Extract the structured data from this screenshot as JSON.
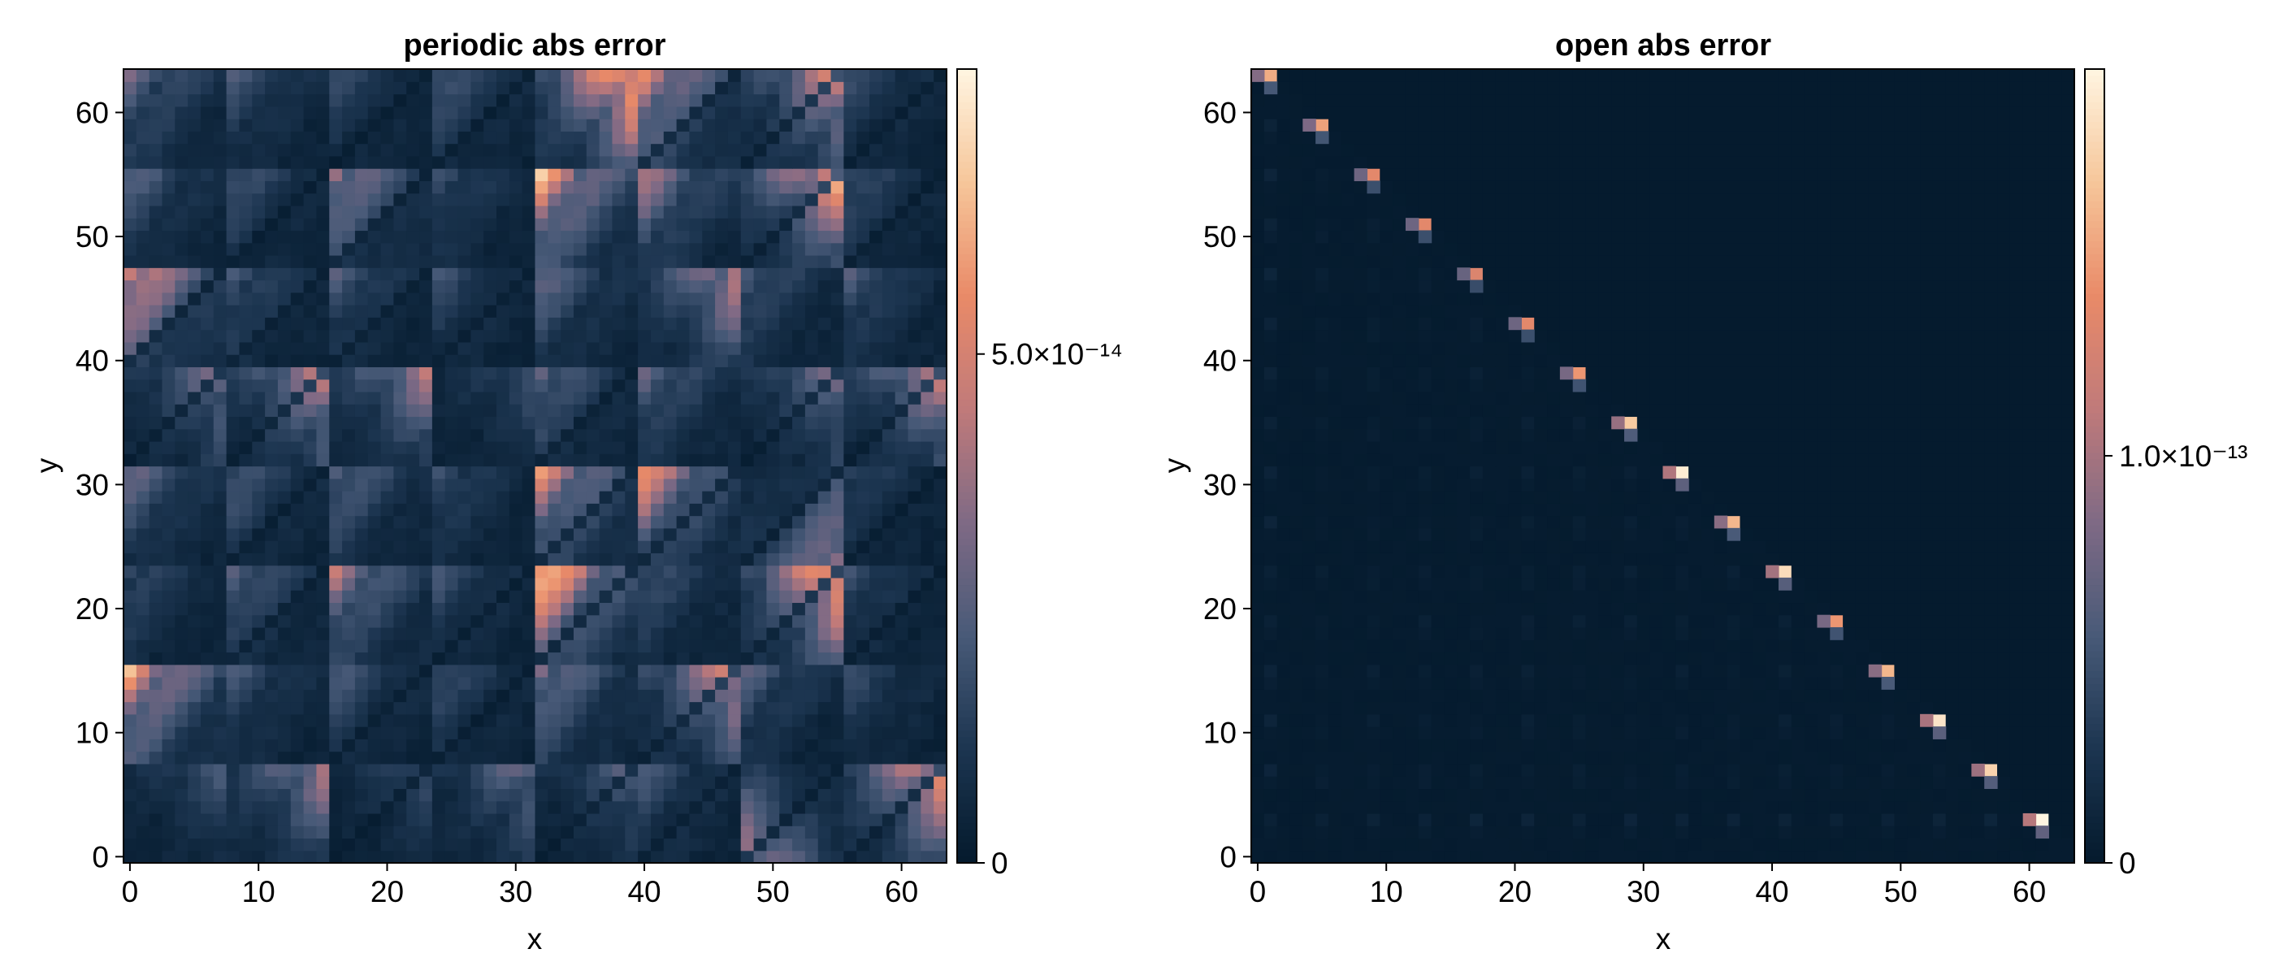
{
  "colors": {
    "colormap": [
      "#041a2d",
      "#1c3550",
      "#485a78",
      "#7f6a85",
      "#c07a7a",
      "#e98a68",
      "#f6c69a",
      "#fff5e1"
    ],
    "axis": "#000000"
  },
  "chart_data": [
    {
      "type": "heatmap",
      "title": "periodic abs error",
      "xlabel": "x",
      "ylabel": "y",
      "xlim": [
        -0.5,
        63.5
      ],
      "ylim": [
        -0.5,
        63.5
      ],
      "xticks": [
        0,
        10,
        20,
        30,
        40,
        50,
        60
      ],
      "yticks": [
        0,
        10,
        20,
        30,
        40,
        50,
        60
      ],
      "colorbar": {
        "range": [
          0,
          7.8e-14
        ],
        "ticks": [
          {
            "value": 0,
            "label": "0"
          },
          {
            "value": 5e-14,
            "label": "5.0×10⁻¹⁴"
          }
        ]
      },
      "grid": {
        "nx": 64,
        "ny": 64,
        "block_size": 8
      },
      "blocks": {
        "description_rows": "8x8 grid of block peak values (×1e-14), row index = y block from bottom, col index = x block from left",
        "rows": [
          [
            2.2,
            4.4,
            2.0,
            3.2,
            2.6,
            2.2,
            4.4,
            6.4
          ],
          [
            6.4,
            2.2,
            2.4,
            2.0,
            3.8,
            5.8,
            2.6,
            1.8
          ],
          [
            2.0,
            2.8,
            4.4,
            2.0,
            7.6,
            2.2,
            7.6,
            1.8
          ],
          [
            3.0,
            2.4,
            3.0,
            2.0,
            5.6,
            5.8,
            4.4,
            1.6
          ],
          [
            3.6,
            5.0,
            4.4,
            2.0,
            3.0,
            3.0,
            3.6,
            5.0
          ],
          [
            6.2,
            2.4,
            2.4,
            2.0,
            3.0,
            5.0,
            2.4,
            2.4
          ],
          [
            2.6,
            2.2,
            4.4,
            2.0,
            6.6,
            4.2,
            6.8,
            2.0
          ],
          [
            3.2,
            2.2,
            1.8,
            2.4,
            7.8,
            5.6,
            5.6,
            1.8
          ]
        ],
        "peak_corner": [
          [
            "tr",
            "tr",
            "tr",
            "tr",
            "tr",
            "tl",
            "bl",
            "tr"
          ],
          [
            "tl",
            "tl",
            "tl",
            "tl",
            "tl",
            "tr",
            "tl",
            "tl"
          ],
          [
            "tl",
            "tl",
            "tl",
            "tl",
            "tl",
            "tl",
            "tr",
            "tl"
          ],
          [
            "tl",
            "tl",
            "tl",
            "tl",
            "tl",
            "tl",
            "br",
            "tl"
          ],
          [
            "tr",
            "tr",
            "tr",
            "tr",
            "tl",
            "tl",
            "tr",
            "tr"
          ],
          [
            "tl",
            "tl",
            "tl",
            "tl",
            "tl",
            "tr",
            "tl",
            "tl"
          ],
          [
            "tl",
            "tl",
            "tl",
            "tl",
            "tl",
            "tl",
            "tr",
            "tl"
          ],
          [
            "tl",
            "tl",
            "tl",
            "tl",
            "tr",
            "tl",
            "tr",
            "tl"
          ]
        ]
      }
    },
    {
      "type": "heatmap",
      "title": "open abs error",
      "xlabel": "x",
      "ylabel": "y",
      "xlim": [
        -0.5,
        63.5
      ],
      "ylim": [
        -0.5,
        63.5
      ],
      "xticks": [
        0,
        10,
        20,
        30,
        40,
        50,
        60
      ],
      "yticks": [
        0,
        10,
        20,
        30,
        40,
        50,
        60
      ],
      "colorbar": {
        "range": [
          0,
          1.95e-13
        ],
        "ticks": [
          {
            "value": 0,
            "label": "0"
          },
          {
            "value": 1e-13,
            "label": "1.0×10⁻¹³"
          }
        ]
      },
      "grid": {
        "nx": 64,
        "ny": 64,
        "spacing": 4
      },
      "diagonal_peaks": [
        {
          "x": 1,
          "y": 63,
          "v": 1.55
        },
        {
          "x": 5,
          "y": 59,
          "v": 1.5
        },
        {
          "x": 9,
          "y": 55,
          "v": 1.35
        },
        {
          "x": 13,
          "y": 51,
          "v": 1.35
        },
        {
          "x": 17,
          "y": 47,
          "v": 1.3
        },
        {
          "x": 21,
          "y": 43,
          "v": 1.35
        },
        {
          "x": 25,
          "y": 39,
          "v": 1.45
        },
        {
          "x": 29,
          "y": 35,
          "v": 1.7
        },
        {
          "x": 33,
          "y": 31,
          "v": 1.9
        },
        {
          "x": 37,
          "y": 27,
          "v": 1.6
        },
        {
          "x": 41,
          "y": 23,
          "v": 1.8
        },
        {
          "x": 45,
          "y": 19,
          "v": 1.45
        },
        {
          "x": 49,
          "y": 15,
          "v": 1.6
        },
        {
          "x": 53,
          "y": 11,
          "v": 1.85
        },
        {
          "x": 57,
          "y": 7,
          "v": 1.75
        },
        {
          "x": 61,
          "y": 3,
          "v": 1.95
        }
      ]
    }
  ]
}
